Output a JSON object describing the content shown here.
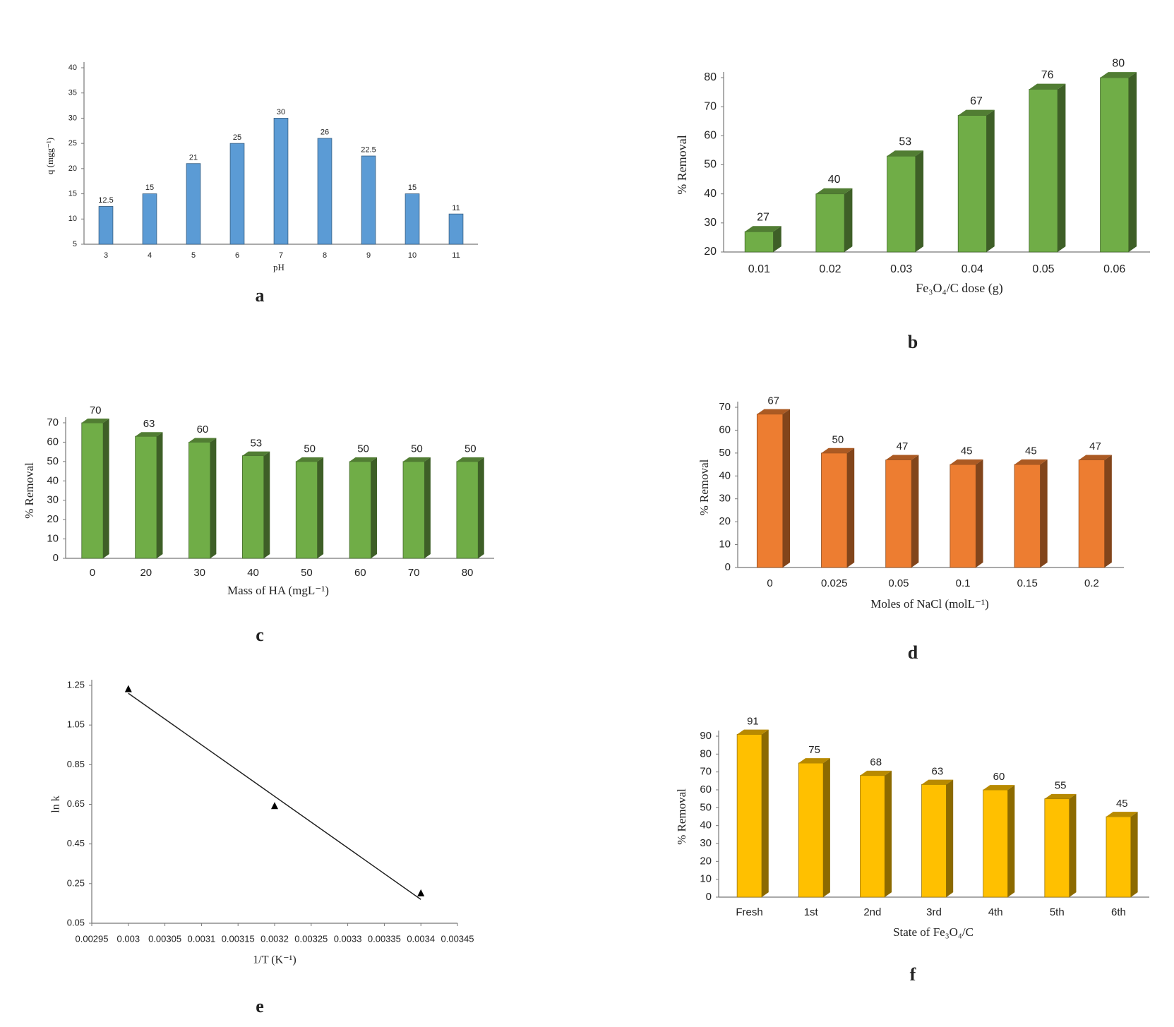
{
  "chart_data": [
    {
      "type": "bar",
      "label": "a",
      "ylabel": "q (mgg⁻¹)",
      "xlabel": "pH",
      "categories": [
        "3",
        "4",
        "5",
        "6",
        "7",
        "8",
        "9",
        "10",
        "11"
      ],
      "values": [
        12.5,
        15,
        21,
        25,
        30,
        26,
        22.5,
        15,
        11
      ],
      "color": "#5b9bd5",
      "ylim": [
        5,
        40
      ],
      "yticks": [
        5,
        10,
        15,
        20,
        25,
        30,
        35,
        40
      ]
    },
    {
      "type": "bar3d",
      "label": "b",
      "ylabel": "% Removal",
      "xlabel": "Fe₃O₄/C  dose (g)",
      "categories": [
        "0.01",
        "0.02",
        "0.03",
        "0.04",
        "0.05",
        "0.06"
      ],
      "values": [
        27,
        40,
        53,
        67,
        76,
        80
      ],
      "color": "#70ad47",
      "ylim": [
        20,
        80
      ],
      "yticks": [
        20,
        30,
        40,
        50,
        60,
        70,
        80
      ]
    },
    {
      "type": "bar3d",
      "label": "c",
      "ylabel": "% Removal",
      "xlabel": "Mass of HA (mgL⁻¹)",
      "categories": [
        "0",
        "20",
        "30",
        "40",
        "50",
        "60",
        "70",
        "80"
      ],
      "values": [
        70,
        63,
        60,
        53,
        50,
        50,
        50,
        50
      ],
      "color": "#70ad47",
      "ylim": [
        0,
        70
      ],
      "yticks": [
        0,
        10,
        20,
        30,
        40,
        50,
        60,
        70
      ]
    },
    {
      "type": "bar3d",
      "label": "d",
      "ylabel": "% Removal",
      "xlabel": "Moles of NaCl (molL⁻¹)",
      "categories": [
        "0",
        "0.025",
        "0.05",
        "0.1",
        "0.15",
        "0.2"
      ],
      "values": [
        67,
        50,
        47,
        45,
        45,
        47
      ],
      "color": "#ed7d31",
      "ylim": [
        0,
        70
      ],
      "yticks": [
        0,
        10,
        20,
        30,
        40,
        50,
        60,
        70
      ]
    },
    {
      "type": "scatter",
      "label": "e",
      "ylabel": "ln k",
      "xlabel": "1/T (K⁻¹)",
      "x": [
        0.003,
        0.0032,
        0.0034
      ],
      "values": [
        1.23,
        0.64,
        0.2
      ],
      "color": "#000000",
      "trendline": {
        "x": [
          0.003,
          0.0034
        ],
        "values": [
          1.21,
          0.17
        ]
      },
      "xlim": [
        0.00295,
        0.00345
      ],
      "xticks": [
        0.00295,
        0.003,
        0.00305,
        0.0031,
        0.00315,
        0.0032,
        0.00325,
        0.0033,
        0.00335,
        0.0034,
        0.00345
      ],
      "ylim": [
        0.05,
        1.25
      ],
      "yticks": [
        0.05,
        0.25,
        0.45,
        0.65,
        0.85,
        1.05,
        1.25
      ]
    },
    {
      "type": "bar3d",
      "label": "f",
      "ylabel": "% Removal",
      "xlabel": "State of Fe₃O₄/C",
      "categories": [
        "Fresh",
        "1st",
        "2nd",
        "3rd",
        "4th",
        "5th",
        "6th"
      ],
      "values": [
        91,
        75,
        68,
        63,
        60,
        55,
        45
      ],
      "color": "#ffc000",
      "ylim": [
        0,
        90
      ],
      "yticks": [
        0,
        10,
        20,
        30,
        40,
        50,
        60,
        70,
        80,
        90
      ]
    }
  ]
}
